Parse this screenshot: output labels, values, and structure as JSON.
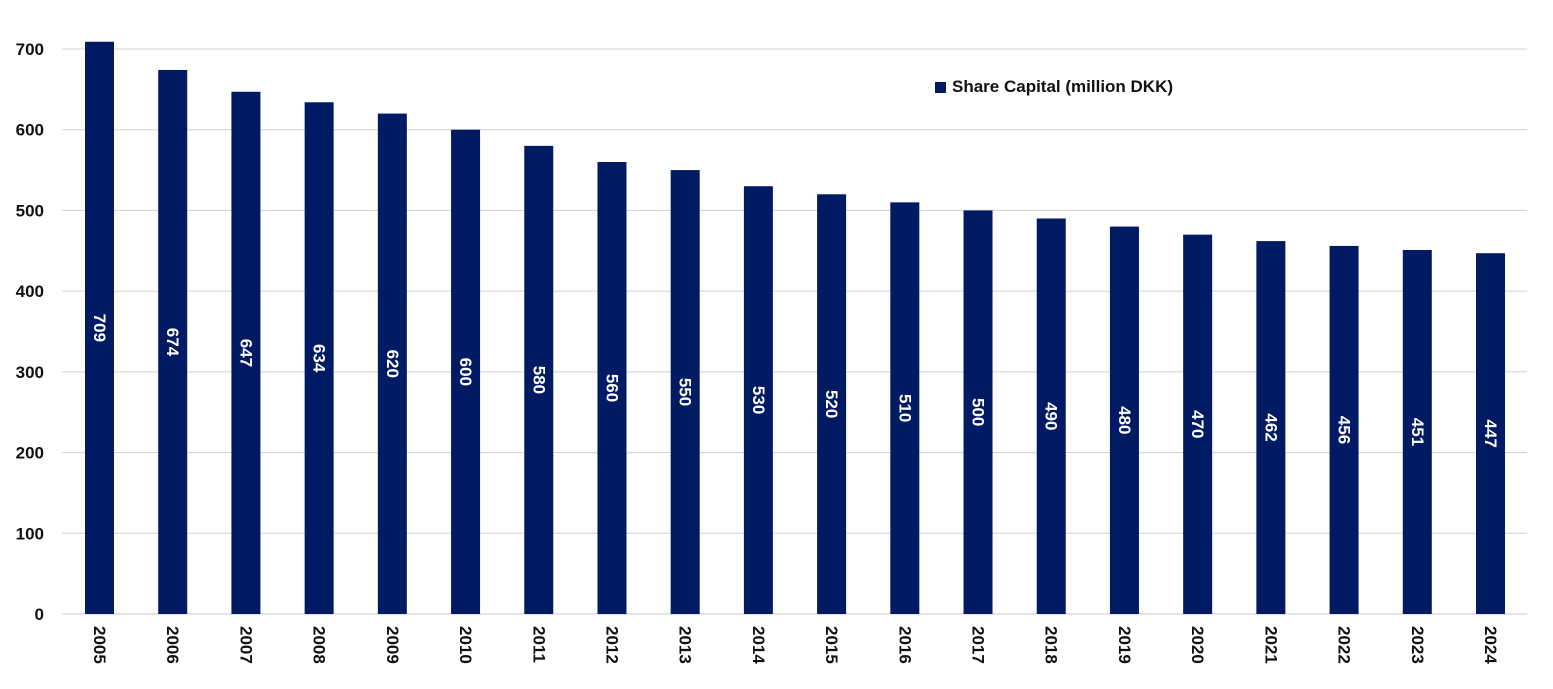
{
  "chart_data": {
    "type": "bar",
    "title": "",
    "xlabel": "",
    "ylabel": "",
    "categories": [
      "2005",
      "2006",
      "2007",
      "2008",
      "2009",
      "2010",
      "2011",
      "2012",
      "2013",
      "2014",
      "2015",
      "2016",
      "2017",
      "2018",
      "2019",
      "2020",
      "2021",
      "2022",
      "2023",
      "2024"
    ],
    "series": [
      {
        "name": "Share Capital (million DKK)",
        "values": [
          709,
          674,
          647,
          634,
          620,
          600,
          580,
          560,
          550,
          530,
          520,
          510,
          500,
          490,
          480,
          470,
          462,
          456,
          451,
          447
        ],
        "color": "#001a63"
      }
    ],
    "data_labels": [
      "709",
      "674",
      "647",
      "634",
      "620",
      "600",
      "580",
      "560",
      "550",
      "530",
      "520",
      "510",
      "500",
      "490",
      "480",
      "470",
      "462",
      "456",
      "451",
      "447"
    ],
    "y_ticks": [
      0,
      100,
      200,
      300,
      400,
      500,
      600,
      700
    ],
    "ylim": [
      0,
      700
    ],
    "grid": true,
    "legend_position": "top-right",
    "label_color": "#ffffff",
    "grid_color": "#d0d0d0"
  }
}
